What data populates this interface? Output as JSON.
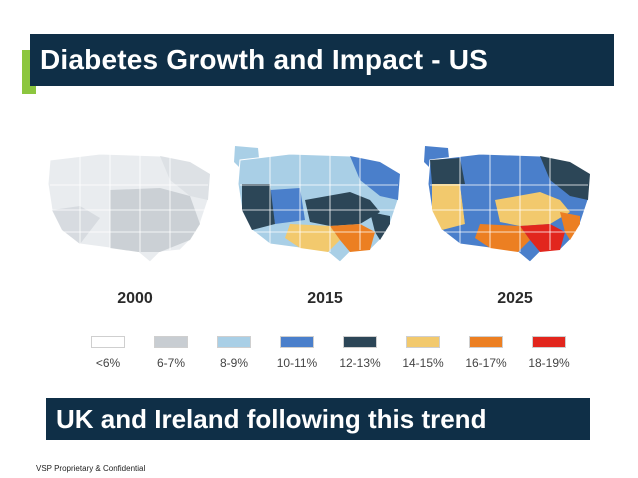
{
  "slide": {
    "title": "Diabetes Growth and Impact - US",
    "subtitle_banner": "UK and Ireland following this trend",
    "footer": "VSP Proprietary & Confidential"
  },
  "maps": [
    {
      "year": "2000"
    },
    {
      "year": "2015"
    },
    {
      "year": "2025"
    }
  ],
  "legend": [
    {
      "label": "<6%",
      "color": "#ffffff"
    },
    {
      "label": "6-7%",
      "color": "#c8cdd2"
    },
    {
      "label": "8-9%",
      "color": "#a9cfe6"
    },
    {
      "label": "10-11%",
      "color": "#4a7fcb"
    },
    {
      "label": "12-13%",
      "color": "#2c4657"
    },
    {
      "label": "14-15%",
      "color": "#f2c96d"
    },
    {
      "label": "16-17%",
      "color": "#ec7f22"
    },
    {
      "label": "18-19%",
      "color": "#e2261d"
    }
  ],
  "colors": {
    "banner_bg": "#0f2f47",
    "accent": "#8cc63f"
  }
}
